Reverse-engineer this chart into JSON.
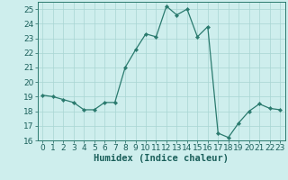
{
  "x": [
    0,
    1,
    2,
    3,
    4,
    5,
    6,
    7,
    8,
    9,
    10,
    11,
    12,
    13,
    14,
    15,
    16,
    17,
    18,
    19,
    20,
    21,
    22,
    23
  ],
  "y": [
    19.1,
    19.0,
    18.8,
    18.6,
    18.1,
    18.1,
    18.6,
    18.6,
    21.0,
    22.2,
    23.3,
    23.1,
    25.2,
    24.6,
    25.0,
    23.1,
    23.8,
    16.5,
    16.2,
    17.2,
    18.0,
    18.5,
    18.2,
    18.1
  ],
  "line_color": "#2a7a6e",
  "marker": "D",
  "marker_size": 2.2,
  "bg_color": "#ceeeed",
  "grid_color": "#a8d5d3",
  "axes_color": "#2a7a6e",
  "tick_color": "#1a5f5a",
  "xlabel": "Humidex (Indice chaleur)",
  "ylim": [
    16,
    25.5
  ],
  "xlim": [
    -0.5,
    23.5
  ],
  "yticks": [
    16,
    17,
    18,
    19,
    20,
    21,
    22,
    23,
    24,
    25
  ],
  "xticks": [
    0,
    1,
    2,
    3,
    4,
    5,
    6,
    7,
    8,
    9,
    10,
    11,
    12,
    13,
    14,
    15,
    16,
    17,
    18,
    19,
    20,
    21,
    22,
    23
  ],
  "font_size": 6.5,
  "label_font_size": 7.5
}
